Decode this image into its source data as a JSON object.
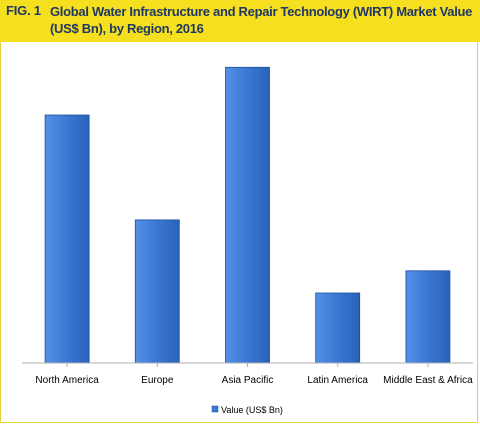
{
  "header": {
    "fig_label": "FIG. 1",
    "title": "Global Water Infrastructure and Repair Technology (WIRT) Market Value (US$ Bn), by Region, 2016"
  },
  "colors": {
    "header_bg": "#f5df1f",
    "title_text": "#1f3864",
    "bar_fill": "#3a78d4",
    "bar_edge": "#1c4f9c"
  },
  "chart_data": {
    "type": "bar",
    "categories": [
      "North America",
      "Europe",
      "Asia Pacific",
      "Latin America",
      "Middle East & Africa"
    ],
    "series": [
      {
        "name": "Value (US$ Bn)",
        "values": [
          7.8,
          4.5,
          9.3,
          2.2,
          2.9
        ]
      }
    ],
    "ylim": [
      0,
      10
    ],
    "grid": false,
    "legend": "bottom"
  }
}
